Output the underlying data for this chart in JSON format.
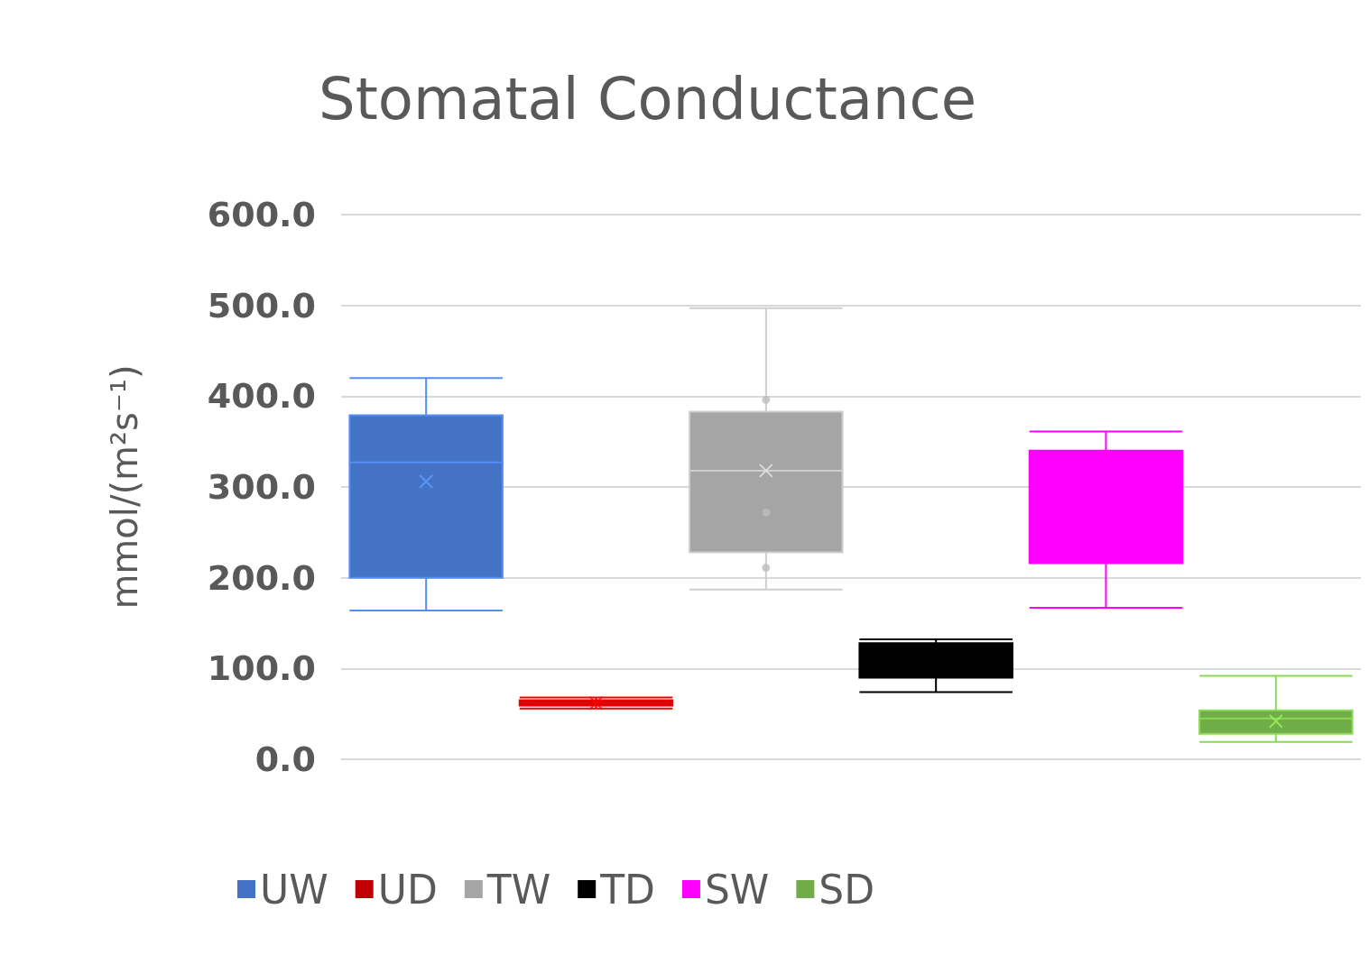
{
  "chart_data": {
    "type": "box",
    "title": "Stomatal Conductance",
    "ylabel": "mmol/(m²s⁻¹)",
    "categories": [
      null,
      null,
      null,
      null,
      null,
      null
    ],
    "series": [
      {
        "name": "UW",
        "color": "#4472c4",
        "boxes": [
          {
            "low": 164,
            "q1": 200,
            "median": 327,
            "q3": 379,
            "high": 420,
            "mean": 306
          },
          null,
          null,
          null,
          null,
          null
        ]
      },
      {
        "name": "UD",
        "color": "#c00000",
        "boxes": [
          null,
          {
            "low": 56,
            "q1": 59,
            "median": 62,
            "q3": 65,
            "high": 68,
            "mean": 62
          },
          null,
          null,
          null,
          null
        ]
      },
      {
        "name": "TW",
        "color": "#a5a5a5",
        "boxes": [
          null,
          null,
          {
            "low": 187,
            "q1": 228,
            "median": 318,
            "q3": 383,
            "high": 497,
            "mean": 318,
            "outliers": [
              396,
              272,
              211
            ]
          },
          null,
          null,
          null
        ]
      },
      {
        "name": "TD",
        "color": "#000000",
        "boxes": [
          null,
          null,
          null,
          {
            "low": 74,
            "q1": 90,
            "median": 110,
            "q3": 128,
            "high": 132
          },
          null,
          null
        ]
      },
      {
        "name": "SW",
        "color": "#ff00ff",
        "boxes": [
          null,
          null,
          null,
          null,
          {
            "low": 167,
            "q1": 216,
            "median": 335,
            "q3": 340,
            "high": 361
          },
          null
        ]
      },
      {
        "name": "SD",
        "color": "#70ad47",
        "boxes": [
          null,
          null,
          null,
          null,
          null,
          {
            "low": 19,
            "q1": 28,
            "median": 45,
            "q3": 54,
            "high": 92,
            "mean": 42
          }
        ]
      }
    ],
    "ylim": [
      0,
      600
    ],
    "yticks": [
      {
        "value": 0,
        "label": "0.0"
      },
      {
        "value": 100,
        "label": "100.0"
      },
      {
        "value": 200,
        "label": "200.0"
      },
      {
        "value": 300,
        "label": "300.0"
      },
      {
        "value": 400,
        "label": "400.0"
      },
      {
        "value": 500,
        "label": "500.0"
      },
      {
        "value": 600,
        "label": "600.0"
      }
    ],
    "grid": "y",
    "legend": "bottom",
    "tick_labels": "y"
  }
}
